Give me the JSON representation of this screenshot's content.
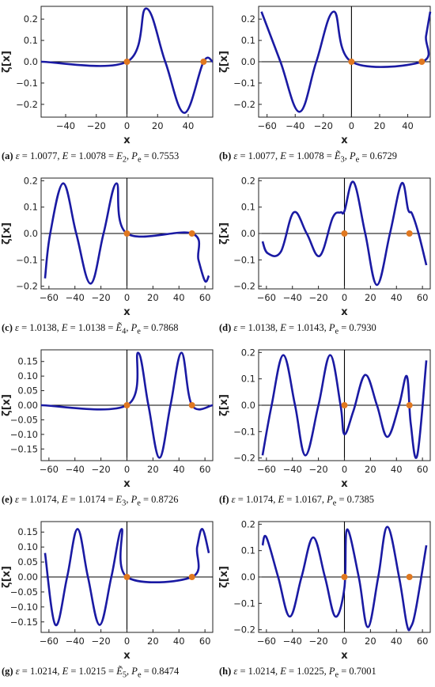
{
  "chart_data": [
    {
      "type": "line",
      "panel": "(a)",
      "xlabel": "x",
      "ylabel": "ζ[x]",
      "xlim": [
        -56,
        56
      ],
      "ylim": [
        -0.26,
        0.26
      ],
      "xticks": [
        -40,
        -20,
        0,
        20,
        40
      ],
      "yticks": [
        -0.2,
        -0.1,
        0.0,
        0.1,
        0.2
      ],
      "ytick_labels": [
        "-0.2",
        "-0.1",
        "0.0",
        "0.1",
        "0.2"
      ],
      "series": [
        {
          "x": [
            -56,
            0,
            12.5,
            25,
            37.5,
            50,
            56
          ],
          "y": [
            0,
            0,
            0.25,
            0,
            -0.24,
            0,
            0
          ]
        }
      ],
      "markers": [
        {
          "x": 0,
          "y": 0
        },
        {
          "x": 50,
          "y": 0
        }
      ],
      "caption": {
        "label": "(a)",
        "eps": "1.0077",
        "E": "1.0078",
        "E_sym": "E",
        "E_sub": "2",
        "tilde": false,
        "Pe": "0.7553"
      }
    },
    {
      "type": "line",
      "panel": "(b)",
      "xlabel": "x",
      "ylabel": "ζ[x]",
      "xlim": [
        -66,
        56
      ],
      "ylim": [
        -0.26,
        0.26
      ],
      "xticks": [
        -60,
        -40,
        -20,
        0,
        20,
        40
      ],
      "yticks": [
        -0.2,
        -0.1,
        0.0,
        0.1,
        0.2
      ],
      "ytick_labels": [
        "-0.2",
        "-0.1",
        "0.0",
        "0.1",
        "0.2"
      ],
      "series": [
        {
          "x": [
            -64,
            -50.5,
            -37,
            -25,
            -12.5,
            0,
            50,
            53,
            56
          ],
          "y": [
            0.235,
            0,
            -0.235,
            0,
            0.235,
            0,
            0,
            0.12,
            0.235
          ]
        }
      ],
      "markers": [
        {
          "x": 0,
          "y": 0
        },
        {
          "x": 50,
          "y": 0
        }
      ],
      "caption": {
        "label": "(b)",
        "eps": "1.0077",
        "E": "1.0078",
        "E_sym": "E",
        "E_sub": "3",
        "tilde": true,
        "Pe": "0.6729"
      }
    },
    {
      "type": "line",
      "panel": "(c)",
      "xlabel": "x",
      "ylabel": "ζ[x]",
      "xlim": [
        -66,
        66
      ],
      "ylim": [
        -0.21,
        0.21
      ],
      "xticks": [
        -60,
        -40,
        -20,
        0,
        20,
        40,
        60
      ],
      "yticks": [
        -0.2,
        -0.1,
        0.0,
        0.1,
        0.2
      ],
      "ytick_labels": [
        "-0.2",
        "-0.1",
        "0.0",
        "0.1",
        "0.2"
      ],
      "series": [
        {
          "x": [
            -63,
            -59,
            -49,
            -39,
            -28,
            -18,
            -8,
            0,
            50,
            55,
            60,
            63
          ],
          "y": [
            -0.17,
            0,
            0.19,
            0,
            -0.19,
            0,
            0.19,
            0,
            0,
            -0.1,
            -0.18,
            -0.16
          ]
        }
      ],
      "markers": [
        {
          "x": 0,
          "y": 0
        },
        {
          "x": 50,
          "y": 0
        }
      ],
      "caption": {
        "label": "(c)",
        "eps": "1.0138",
        "E": "1.0138",
        "E_sym": "E",
        "E_sub": "4",
        "tilde": true,
        "Pe": "0.7868"
      }
    },
    {
      "type": "line",
      "panel": "(d)",
      "xlabel": "x",
      "ylabel": "ζ[x]",
      "xlim": [
        -66,
        66
      ],
      "ylim": [
        -0.21,
        0.21
      ],
      "xticks": [
        -60,
        -40,
        -20,
        0,
        20,
        40,
        60
      ],
      "yticks": [
        -0.2,
        -0.1,
        0.0,
        0.1,
        0.2
      ],
      "ytick_labels": [
        "-0.2",
        "-0.1",
        "0.0",
        "0.1",
        "0.2"
      ],
      "series": [
        {
          "x": [
            -63,
            -59,
            -49,
            -39,
            -29,
            -19,
            -9,
            -3,
            0,
            7,
            16,
            25,
            35,
            44,
            49,
            52,
            57,
            63
          ],
          "y": [
            -0.03,
            -0.075,
            -0.07,
            0.08,
            0,
            -0.085,
            0.06,
            0.08,
            0.085,
            0.195,
            0,
            -0.195,
            0,
            0.19,
            0.09,
            0.075,
            0,
            -0.12
          ]
        }
      ],
      "markers": [
        {
          "x": 0,
          "y": 0
        },
        {
          "x": 50,
          "y": 0
        }
      ],
      "caption": {
        "label": "(d)",
        "eps": "1.0138",
        "E": "1.0143",
        "E_sym": "P",
        "E_sub": "",
        "tilde": false,
        "Pe": "0.7930"
      }
    },
    {
      "type": "line",
      "panel": "(e)",
      "xlabel": "x",
      "ylabel": "ζ[x]",
      "xlim": [
        -66,
        66
      ],
      "ylim": [
        -0.19,
        0.19
      ],
      "xticks": [
        -60,
        -40,
        -20,
        0,
        20,
        40,
        60
      ],
      "yticks": [
        -0.15,
        -0.1,
        -0.05,
        0.0,
        0.05,
        0.1,
        0.15
      ],
      "ytick_labels": [
        "-0.15",
        "-0.10",
        "-0.05",
        "0.00",
        "0.05",
        "0.10",
        "0.15"
      ],
      "series": [
        {
          "x": [
            -66,
            0,
            8.5,
            16.5,
            25,
            33.5,
            42,
            50,
            66
          ],
          "y": [
            0,
            0,
            0.18,
            0,
            -0.18,
            0,
            0.18,
            0,
            0
          ]
        }
      ],
      "markers": [
        {
          "x": 0,
          "y": 0
        },
        {
          "x": 50,
          "y": 0
        }
      ],
      "caption": {
        "label": "(e)",
        "eps": "1.0174",
        "E": "1.0174",
        "E_sym": "E",
        "E_sub": "3",
        "tilde": false,
        "Pe": "0.8726"
      }
    },
    {
      "type": "line",
      "panel": "(f)",
      "xlabel": "x",
      "ylabel": "ζ[x]",
      "xlim": [
        -66,
        66
      ],
      "ylim": [
        -0.21,
        0.21
      ],
      "xticks": [
        -60,
        -40,
        -20,
        0,
        20,
        40,
        60
      ],
      "yticks": [
        -0.2,
        -0.1,
        0.0,
        0.1,
        0.2
      ],
      "ytick_labels": [
        "-0.2",
        "-0.1",
        "0.0",
        "0.1",
        "0.2"
      ],
      "series": [
        {
          "x": [
            -63,
            -56,
            -47,
            -38,
            -30,
            -20,
            -11,
            -3,
            0,
            7,
            16,
            25,
            33,
            42,
            48,
            51,
            56,
            63
          ],
          "y": [
            -0.19,
            0,
            0.19,
            0,
            -0.19,
            0,
            0.19,
            0,
            -0.11,
            -0.02,
            0.115,
            0,
            -0.12,
            0,
            0.11,
            -0.07,
            -0.19,
            0.17
          ]
        }
      ],
      "markers": [
        {
          "x": 0,
          "y": 0
        },
        {
          "x": 50,
          "y": 0
        }
      ],
      "caption": {
        "label": "(f)",
        "eps": "1.0174",
        "E": "1.0167",
        "E_sym": "P",
        "E_sub": "",
        "tilde": false,
        "Pe": "0.7385"
      }
    },
    {
      "type": "line",
      "panel": "(g)",
      "xlabel": "x",
      "ylabel": "ζ[x]",
      "xlim": [
        -66,
        66
      ],
      "ylim": [
        -0.185,
        0.185
      ],
      "xticks": [
        -60,
        -40,
        -20,
        0,
        20,
        40,
        60
      ],
      "yticks": [
        -0.15,
        -0.1,
        -0.05,
        0.0,
        0.05,
        0.1,
        0.15
      ],
      "ytick_labels": [
        "-0.15",
        "-0.10",
        "-0.05",
        "0.00",
        "0.05",
        "0.10",
        "0.15"
      ],
      "series": [
        {
          "x": [
            -63,
            -55,
            -46,
            -38,
            -30,
            -21,
            -12,
            -4,
            0,
            50,
            54,
            58,
            63
          ],
          "y": [
            0.08,
            -0.16,
            0,
            0.16,
            0,
            -0.16,
            0,
            0.16,
            0,
            0,
            0.1,
            0.16,
            0.08
          ]
        }
      ],
      "markers": [
        {
          "x": 0,
          "y": 0
        },
        {
          "x": 50,
          "y": 0
        }
      ],
      "caption": {
        "label": "(g)",
        "eps": "1.0214",
        "E": "1.0215",
        "E_sym": "E",
        "E_sub": "5",
        "tilde": true,
        "Pe": "0.8474"
      }
    },
    {
      "type": "line",
      "panel": "(h)",
      "xlabel": "x",
      "ylabel": "ζ[x]",
      "xlim": [
        -66,
        66
      ],
      "ylim": [
        -0.21,
        0.21
      ],
      "xticks": [
        -60,
        -40,
        -20,
        0,
        20,
        40,
        60
      ],
      "yticks": [
        -0.2,
        -0.1,
        0.0,
        0.1,
        0.2
      ],
      "ytick_labels": [
        "-0.2",
        "-0.1",
        "0.0",
        "0.1",
        "0.2"
      ],
      "series": [
        {
          "x": [
            -63,
            -60,
            -51,
            -42,
            -33,
            -24,
            -15,
            -7,
            0,
            2,
            11,
            18,
            26,
            33,
            42,
            48,
            51,
            55,
            63
          ],
          "y": [
            0.12,
            0.15,
            0,
            -0.15,
            0,
            0.15,
            0,
            -0.15,
            -0.04,
            0.18,
            0,
            -0.19,
            0,
            0.19,
            0,
            -0.18,
            -0.19,
            -0.12,
            0.12
          ]
        }
      ],
      "markers": [
        {
          "x": 0,
          "y": 0
        },
        {
          "x": 50,
          "y": 0
        }
      ],
      "caption": {
        "label": "(h)",
        "eps": "1.0214",
        "E": "1.0225",
        "E_sym": "P",
        "E_sub": "",
        "tilde": false,
        "Pe": "0.7001"
      }
    }
  ]
}
